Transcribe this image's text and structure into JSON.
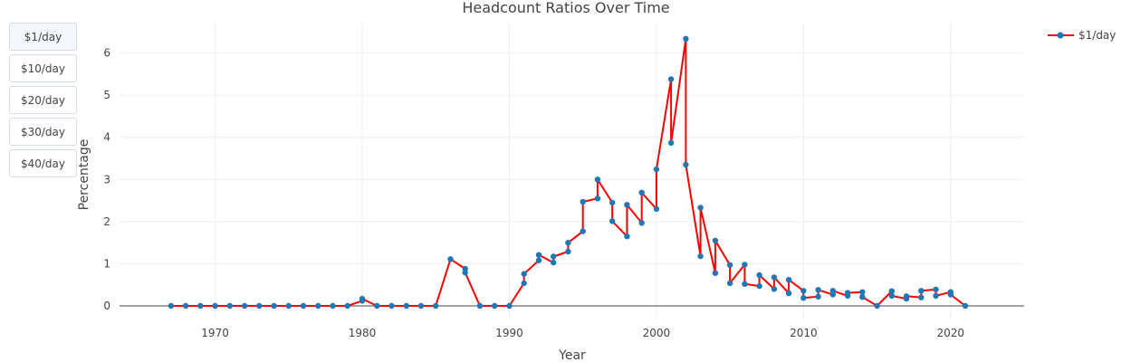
{
  "buttons": [
    {
      "label": "$1/day",
      "active": true
    },
    {
      "label": "$10/day",
      "active": false
    },
    {
      "label": "$20/day",
      "active": false
    },
    {
      "label": "$30/day",
      "active": false
    },
    {
      "label": "$40/day",
      "active": false
    }
  ],
  "colors": {
    "line": "#ff0000",
    "marker": "#1f77b4",
    "grid": "#eeeeee",
    "zeroline": "#444444"
  },
  "chart_data": {
    "type": "line",
    "title": "Headcount Ratios Over Time",
    "xlabel": "Year",
    "ylabel": "Percentage",
    "xlim": [
      1963.5,
      2025
    ],
    "ylim": [
      -0.3,
      6.7
    ],
    "xticks": [
      1970,
      1980,
      1990,
      2000,
      2010,
      2020
    ],
    "yticks": [
      0,
      1,
      2,
      3,
      4,
      5,
      6
    ],
    "grid": true,
    "legend_position": "top-right",
    "series": [
      {
        "name": "$1/day",
        "points": [
          [
            1967,
            0
          ],
          [
            1968,
            0
          ],
          [
            1969,
            0
          ],
          [
            1970,
            0
          ],
          [
            1971,
            0
          ],
          [
            1972,
            0
          ],
          [
            1973,
            0
          ],
          [
            1974,
            0
          ],
          [
            1975,
            0
          ],
          [
            1976,
            0
          ],
          [
            1977,
            0
          ],
          [
            1978,
            0
          ],
          [
            1979,
            0
          ],
          [
            1980,
            0.12
          ],
          [
            1980,
            0.17
          ],
          [
            1981,
            0
          ],
          [
            1982,
            0
          ],
          [
            1983,
            0
          ],
          [
            1984,
            0
          ],
          [
            1985,
            0
          ],
          [
            1986,
            1.11
          ],
          [
            1987,
            0.88
          ],
          [
            1987,
            0.79
          ],
          [
            1988,
            0
          ],
          [
            1989,
            0
          ],
          [
            1990,
            0
          ],
          [
            1991,
            0.54
          ],
          [
            1991,
            0.76
          ],
          [
            1992,
            1.08
          ],
          [
            1992,
            1.21
          ],
          [
            1993,
            1.03
          ],
          [
            1993,
            1.17
          ],
          [
            1994,
            1.29
          ],
          [
            1994,
            1.5
          ],
          [
            1995,
            1.77
          ],
          [
            1995,
            2.47
          ],
          [
            1996,
            2.55
          ],
          [
            1996,
            3.0
          ],
          [
            1997,
            2.45
          ],
          [
            1997,
            2.01
          ],
          [
            1998,
            1.65
          ],
          [
            1998,
            2.4
          ],
          [
            1999,
            1.97
          ],
          [
            1999,
            2.69
          ],
          [
            2000,
            2.3
          ],
          [
            2000,
            3.24
          ],
          [
            2001,
            5.38
          ],
          [
            2001,
            3.87
          ],
          [
            2002,
            6.34
          ],
          [
            2002,
            3.35
          ],
          [
            2003,
            1.18
          ],
          [
            2003,
            2.33
          ],
          [
            2004,
            0.78
          ],
          [
            2004,
            1.55
          ],
          [
            2005,
            0.97
          ],
          [
            2005,
            0.54
          ],
          [
            2006,
            0.98
          ],
          [
            2006,
            0.52
          ],
          [
            2007,
            0.47
          ],
          [
            2007,
            0.73
          ],
          [
            2008,
            0.4
          ],
          [
            2008,
            0.68
          ],
          [
            2009,
            0.3
          ],
          [
            2009,
            0.62
          ],
          [
            2010,
            0.36
          ],
          [
            2010,
            0.19
          ],
          [
            2011,
            0.22
          ],
          [
            2011,
            0.38
          ],
          [
            2012,
            0.27
          ],
          [
            2012,
            0.36
          ],
          [
            2013,
            0.24
          ],
          [
            2013,
            0.31
          ],
          [
            2014,
            0.33
          ],
          [
            2014,
            0.21
          ],
          [
            2015,
            0
          ],
          [
            2016,
            0.35
          ],
          [
            2016,
            0.24
          ],
          [
            2017,
            0.17
          ],
          [
            2017,
            0.23
          ],
          [
            2018,
            0.2
          ],
          [
            2018,
            0.36
          ],
          [
            2019,
            0.39
          ],
          [
            2019,
            0.24
          ],
          [
            2020,
            0.33
          ],
          [
            2020,
            0.27
          ],
          [
            2021,
            0
          ]
        ]
      }
    ]
  }
}
